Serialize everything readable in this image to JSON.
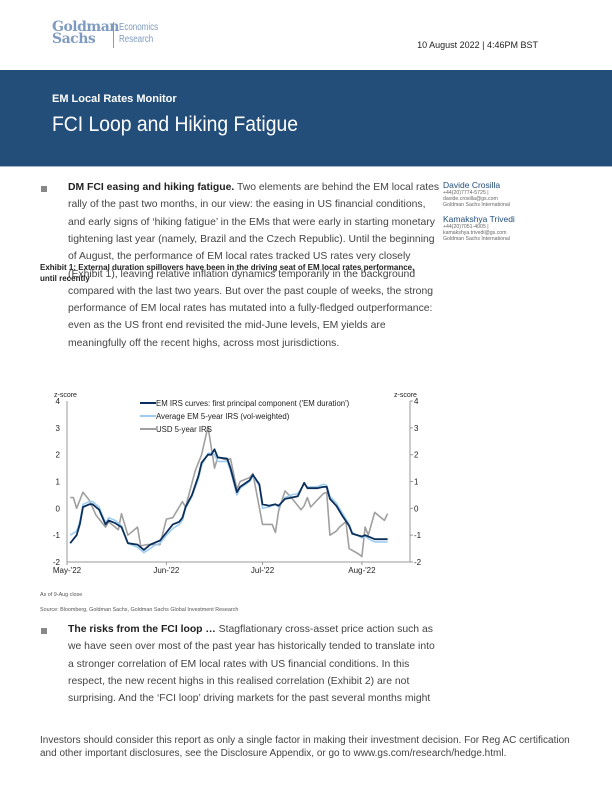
{
  "header": {
    "logo": {
      "line1": "Goldman",
      "line2": "Sachs",
      "sub1": "Economics",
      "sub2": "Research"
    },
    "date": "10 August 2022 | 4:46PM BST"
  },
  "banner": {
    "series": "EM Local Rates Monitor",
    "title": "FCI Loop and Hiking Fatigue",
    "color": "#234e7a"
  },
  "para1": {
    "lead": "DM FCI easing and hiking fatigue.",
    "lines": [
      " Two elements are behind the EM local rates",
      "rally of the past two months, in our view: the easing in US financial conditions,",
      "and early signs of ‘hiking fatigue’ in the EMs that were early in starting monetary",
      "tightening last year (namely, Brazil and the Czech Republic). Until the beginning",
      "of August, the performance of EM local rates tracked US rates very closely",
      "(Exhibit 1), leaving relative inflation dynamics temporarily in the background",
      "compared with the last two years. But over the past couple of weeks, the strong",
      "performance of EM local rates has mutated into a fully-fledged outperformance:",
      "even as the US front end revisited the mid-June levels, EM yields are",
      "meaningfully off the recent highs, across most jurisdictions."
    ]
  },
  "authors": [
    {
      "name": "Davide Crosilla",
      "phone": "+44(20)7774-5725 |",
      "email": "davide.crosilla@gs.com",
      "firm": "Goldman Sachs International"
    },
    {
      "name": "Kamakshya Trivedi",
      "phone": "+44(20)7051-4005 |",
      "email": "kamakshya.trivedi@gs.com",
      "firm": "Goldman Sachs International"
    }
  ],
  "exhibit": {
    "title": "Exhibit 1: External duration spillovers have been in the driving seat of EM local rates performance, until recently",
    "note": "As of 9-Aug close",
    "source": "Source: Bloomberg, Goldman Sachs, Goldman Sachs Global Investment Research"
  },
  "chart_data": {
    "type": "line",
    "ylabel_left": "z-score",
    "ylabel_right": "z-score",
    "ylim": [
      -2,
      4
    ],
    "yticks": [
      4,
      3,
      2,
      1,
      0,
      -1,
      -2
    ],
    "xlim": [
      "2022-05-01",
      "2022-08-16"
    ],
    "xticks": [
      {
        "date": "2022-05-01",
        "label": "May-'22"
      },
      {
        "date": "2022-06-01",
        "label": "Jun-'22"
      },
      {
        "date": "2022-07-01",
        "label": "Jul-'22"
      },
      {
        "date": "2022-08-01",
        "label": "Aug-'22"
      }
    ],
    "grid": false,
    "legend": "top-center",
    "series": [
      {
        "name": "EM IRS curves: first principal component ('EM duration')",
        "color": "#0b2f5a",
        "dates": [
          "05-02",
          "05-04",
          "05-05",
          "05-06",
          "05-08",
          "05-09",
          "05-11",
          "05-13",
          "05-14",
          "05-16",
          "05-18",
          "05-20",
          "05-23",
          "05-25",
          "05-27",
          "05-28",
          "05-30",
          "06-01",
          "06-03",
          "06-05",
          "06-06",
          "06-07",
          "06-09",
          "06-11",
          "06-12",
          "06-14",
          "06-15",
          "06-16",
          "06-17",
          "06-20",
          "06-21",
          "06-23",
          "06-24",
          "06-27",
          "06-28",
          "06-30",
          "07-01",
          "07-03",
          "07-05",
          "07-06",
          "07-08",
          "07-10",
          "07-12",
          "07-14",
          "07-15",
          "07-18",
          "07-20",
          "07-21",
          "07-22",
          "07-24",
          "07-26",
          "07-28",
          "07-29",
          "08-01",
          "08-02",
          "08-04",
          "08-05",
          "08-09"
        ],
        "values": [
          -1.3,
          -1.0,
          -0.6,
          0.05,
          0.15,
          0.15,
          -0.05,
          -0.6,
          -0.45,
          -0.55,
          -0.7,
          -1.3,
          -1.35,
          -1.55,
          -1.35,
          -1.3,
          -1.2,
          -0.9,
          -0.6,
          -0.5,
          -0.35,
          0.05,
          0.5,
          1.2,
          1.7,
          2.0,
          2.0,
          2.2,
          1.9,
          1.85,
          1.5,
          0.6,
          0.8,
          1.05,
          1.25,
          0.9,
          0.15,
          0.1,
          0.15,
          0.1,
          0.35,
          0.4,
          0.45,
          0.95,
          0.75,
          0.75,
          0.8,
          0.8,
          0.35,
          0.1,
          -0.3,
          -0.65,
          -0.95,
          -1.05,
          -1.0,
          -1.1,
          -1.15,
          -1.15
        ]
      },
      {
        "name": "Average EM 5-year IRS (vol-weighted)",
        "color": "#9fcdf0",
        "dates": [
          "05-02",
          "05-04",
          "05-05",
          "05-06",
          "05-08",
          "05-09",
          "05-11",
          "05-13",
          "05-14",
          "05-16",
          "05-18",
          "05-20",
          "05-23",
          "05-25",
          "05-27",
          "05-28",
          "05-30",
          "06-01",
          "06-03",
          "06-05",
          "06-06",
          "06-07",
          "06-09",
          "06-11",
          "06-12",
          "06-14",
          "06-15",
          "06-16",
          "06-17",
          "06-20",
          "06-21",
          "06-23",
          "06-24",
          "06-27",
          "06-28",
          "06-30",
          "07-01",
          "07-03",
          "07-05",
          "07-06",
          "07-08",
          "07-10",
          "07-12",
          "07-14",
          "07-15",
          "07-18",
          "07-20",
          "07-21",
          "07-22",
          "07-24",
          "07-26",
          "07-28",
          "07-29",
          "08-01",
          "08-02",
          "08-04",
          "08-05",
          "08-09"
        ],
        "values": [
          -1.0,
          -0.85,
          -0.5,
          0.15,
          0.25,
          0.25,
          0.05,
          -0.55,
          -0.35,
          -0.45,
          -0.65,
          -1.3,
          -1.45,
          -1.65,
          -1.5,
          -1.4,
          -1.3,
          -1.0,
          -0.75,
          -0.6,
          -0.45,
          0.0,
          0.45,
          1.1,
          1.6,
          2.05,
          2.05,
          2.0,
          1.75,
          1.75,
          1.4,
          0.5,
          0.75,
          1.0,
          1.2,
          0.85,
          0.0,
          0.05,
          0.15,
          0.05,
          0.4,
          0.5,
          0.55,
          0.9,
          0.8,
          0.8,
          0.9,
          0.85,
          0.45,
          0.2,
          -0.2,
          -0.6,
          -0.9,
          -1.1,
          -1.05,
          -1.2,
          -1.25,
          -1.25
        ]
      },
      {
        "name": "USD 5-year IRS",
        "color": "#a0a0a0",
        "dates": [
          "05-02",
          "05-03",
          "05-04",
          "05-06",
          "05-08",
          "05-10",
          "05-13",
          "05-14",
          "05-17",
          "05-18",
          "05-20",
          "05-23",
          "05-24",
          "05-26",
          "05-30",
          "06-01",
          "06-03",
          "06-06",
          "06-07",
          "06-10",
          "06-12",
          "06-14",
          "06-16",
          "06-17",
          "06-20",
          "06-21",
          "06-23",
          "06-24",
          "06-27",
          "06-28",
          "07-01",
          "07-04",
          "07-05",
          "07-06",
          "07-08",
          "07-10",
          "07-13",
          "07-14",
          "07-15",
          "07-16",
          "07-18",
          "07-20",
          "07-21",
          "07-22",
          "07-24",
          "07-25",
          "07-27",
          "07-28",
          "07-31",
          "08-01",
          "08-02",
          "08-03",
          "08-05",
          "08-08",
          "08-09"
        ],
        "values": [
          0.4,
          0.4,
          0.0,
          0.6,
          0.3,
          -0.25,
          -0.7,
          -0.5,
          -0.8,
          -0.2,
          -1.0,
          -0.7,
          -1.4,
          -1.35,
          -1.35,
          -0.4,
          -0.35,
          0.25,
          0.05,
          1.4,
          2.0,
          3.05,
          1.5,
          1.9,
          1.8,
          1.85,
          0.7,
          1.0,
          1.15,
          1.3,
          -0.6,
          -0.6,
          -0.9,
          -0.1,
          0.65,
          0.4,
          -0.05,
          0.1,
          0.4,
          0.05,
          0.3,
          0.55,
          0.6,
          -1.0,
          -0.85,
          -0.7,
          -0.5,
          -1.5,
          -1.7,
          -1.8,
          -0.7,
          -1.0,
          -0.15,
          -0.45,
          -0.2
        ]
      }
    ]
  },
  "para2": {
    "lead": "The risks from the FCI loop …",
    "lines": [
      " Stagflationary cross-asset price action such as",
      "we have seen over most of the past year has historically tended to translate into",
      "a stronger correlation of EM local rates with US financial conditions. In this",
      "respect, the new recent highs in this realised correlation (Exhibit 2) are not",
      "surprising. And the ‘FCI loop’ driving markets for the past several months might"
    ]
  },
  "footer": {
    "text": "Investors should consider this report as only a single factor in making their investment decision. For Reg AC certification and other important disclosures, see the Disclosure Appendix, or go to www.gs.com/research/hedge.html."
  }
}
